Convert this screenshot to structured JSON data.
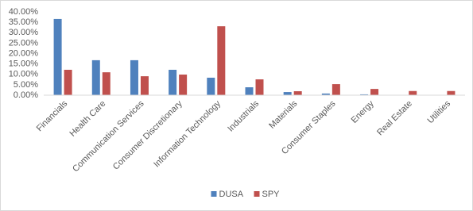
{
  "chart_data": {
    "type": "bar",
    "categories": [
      "Financials",
      "Health Care",
      "Communication Services",
      "Consumer Discretionary",
      "Information Technology",
      "Industrials",
      "Materials",
      "Consumer Staples",
      "Energy",
      "Real Estate",
      "Utilities"
    ],
    "series": [
      {
        "name": "DUSA",
        "color": "#4f81bd",
        "values": [
          36.6,
          16.8,
          16.8,
          12.2,
          8.4,
          3.8,
          1.5,
          0.8,
          0.4,
          0,
          0
        ]
      },
      {
        "name": "SPY",
        "color": "#c0504d",
        "values": [
          12.2,
          11.0,
          9.1,
          9.9,
          33.1,
          7.6,
          1.9,
          5.3,
          3.0,
          2.0,
          2.0
        ]
      }
    ],
    "ylim": [
      0,
      40
    ],
    "yticks": [
      {
        "value": 0,
        "label": "0.00%"
      },
      {
        "value": 5,
        "label": "5.00%"
      },
      {
        "value": 10,
        "label": "10.00%"
      },
      {
        "value": 15,
        "label": "15.00%"
      },
      {
        "value": 20,
        "label": "20.00%"
      },
      {
        "value": 25,
        "label": "25.00%"
      },
      {
        "value": 30,
        "label": "30.00%"
      },
      {
        "value": 35,
        "label": "35.00%"
      },
      {
        "value": 40,
        "label": "40.00%"
      }
    ],
    "grid": false,
    "legend": "bottom"
  }
}
